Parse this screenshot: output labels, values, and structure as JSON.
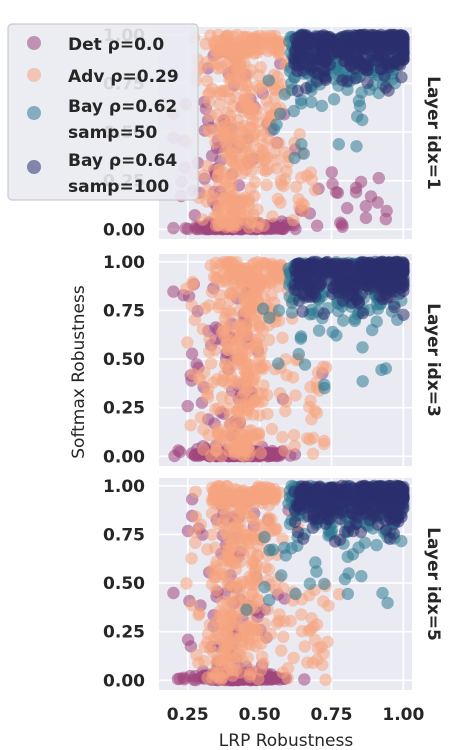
{
  "chart_data": {
    "type": "scatter",
    "xlabel": "LRP Robustness",
    "ylabel": "Softmax Robustness",
    "xlim": [
      0.15,
      1.03
    ],
    "ylim": [
      -0.05,
      1.04
    ],
    "xticks": [
      "0.25",
      "0.50",
      "0.75",
      "1.00"
    ],
    "yticks": [
      "0.00",
      "0.25",
      "0.50",
      "0.75",
      "1.00"
    ],
    "grid": true,
    "legend_position": "upper-left",
    "series": [
      {
        "name": "Det ρ=0.0",
        "color": "#a0457d"
      },
      {
        "name": "Adv ρ=0.29",
        "color": "#f6a47f"
      },
      {
        "name": "Bay ρ=0.62 samp=50",
        "color": "#2f7a94"
      },
      {
        "name": "Bay ρ=0.64 samp=100",
        "color": "#2c2f6e"
      }
    ],
    "panels": [
      {
        "title": "Layer idx=1"
      },
      {
        "title": "Layer idx=3"
      },
      {
        "title": "Layer idx=5"
      }
    ]
  }
}
